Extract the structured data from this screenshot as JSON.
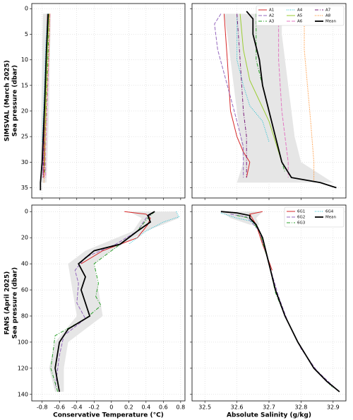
{
  "chart_data": [
    {
      "type": "line",
      "ylabel": [
        "SIMSVAL (March 2025)",
        "Sea pressure (dbar)"
      ],
      "xlim": [
        -0.92,
        0.85
      ],
      "xticks": [
        -0.8,
        -0.6,
        -0.4,
        -0.2,
        0.0,
        0.2,
        0.4,
        0.6,
        0.8
      ],
      "show_xtick_labels": false,
      "ylim": [
        37,
        -1
      ],
      "yticks": [
        0,
        5,
        10,
        15,
        20,
        25,
        30,
        35
      ],
      "show_ytick_labels": true,
      "grid": true,
      "band": {
        "color": "#e6e6e6",
        "y": [
          1,
          10,
          20,
          30,
          34
        ],
        "lower": [
          -0.79,
          -0.8,
          -0.81,
          -0.82,
          -0.82
        ],
        "upper": [
          -0.7,
          -0.71,
          -0.72,
          -0.74,
          -0.75
        ]
      },
      "series": [
        {
          "color": "#d62728",
          "style": "solid",
          "x": [
            -0.74,
            -0.75,
            -0.77,
            -0.78,
            -0.78
          ],
          "values": [
            1,
            8,
            18,
            28,
            33
          ]
        },
        {
          "color": "#9467bd",
          "style": "dashed",
          "x": [
            -0.73,
            -0.75,
            -0.77,
            -0.79,
            -0.79
          ],
          "values": [
            1,
            8,
            18,
            28,
            33
          ]
        },
        {
          "color": "#2ca02c",
          "style": "dashdot",
          "x": [
            -0.72,
            -0.73,
            -0.75,
            -0.77,
            -0.77
          ],
          "values": [
            1,
            8,
            18,
            28,
            32
          ]
        },
        {
          "color": "#17becf",
          "style": "dotted",
          "x": [
            -0.74,
            -0.76,
            -0.78,
            -0.8
          ],
          "values": [
            1,
            8,
            18,
            26
          ]
        },
        {
          "color": "#9acd32",
          "style": "solid",
          "x": [
            -0.72,
            -0.74,
            -0.76,
            -0.77
          ],
          "values": [
            1,
            8,
            18,
            30
          ]
        },
        {
          "color": "#e377c2",
          "style": "dashed",
          "x": [
            -0.71,
            -0.72,
            -0.74,
            -0.76,
            -0.76
          ],
          "values": [
            1,
            8,
            18,
            28,
            33
          ]
        },
        {
          "color": "#7b1f7b",
          "style": "dashdot",
          "x": [
            -0.73,
            -0.75,
            -0.77,
            -0.78,
            -0.79
          ],
          "values": [
            1,
            8,
            18,
            28,
            33
          ]
        },
        {
          "color": "#ff7f0e",
          "style": "dotted",
          "x": [
            -0.71,
            -0.72,
            -0.75,
            -0.77,
            -0.78
          ],
          "values": [
            1,
            8,
            18,
            28,
            34
          ]
        },
        {
          "color": "#000000",
          "style": "mean",
          "x": [
            -0.73,
            -0.75,
            -0.77,
            -0.79,
            -0.8,
            -0.82,
            -0.82
          ],
          "values": [
            1,
            8,
            18,
            26,
            30,
            34,
            35.5
          ]
        }
      ]
    },
    {
      "type": "line",
      "xlim": [
        32.46,
        32.94
      ],
      "xticks": [
        32.5,
        32.6,
        32.7,
        32.8,
        32.9
      ],
      "show_xtick_labels": false,
      "ylim": [
        37,
        -1
      ],
      "yticks": [
        0,
        5,
        10,
        15,
        20,
        25,
        30,
        35
      ],
      "show_ytick_labels": false,
      "grid": true,
      "legend": "upper right",
      "legend_columns": 3,
      "band": {
        "color": "#e6e6e6",
        "y": [
          1,
          5,
          10,
          15,
          20,
          25,
          30,
          34
        ],
        "lower": [
          32.56,
          32.57,
          32.58,
          32.59,
          32.6,
          32.61,
          32.62,
          32.6
        ],
        "upper": [
          32.74,
          32.74,
          32.75,
          32.76,
          32.77,
          32.78,
          32.8,
          32.9
        ]
      },
      "series": [
        {
          "name": "A1",
          "color": "#d62728",
          "style": "solid",
          "x": [
            32.56,
            32.57,
            32.58,
            32.6,
            32.62,
            32.64,
            32.63
          ],
          "values": [
            1,
            10,
            20,
            25,
            28,
            30,
            33
          ]
        },
        {
          "name": "A2",
          "color": "#9467bd",
          "style": "dashed",
          "x": [
            32.55,
            32.53,
            32.54,
            32.57,
            32.6,
            32.62,
            32.62
          ],
          "values": [
            1,
            3,
            8,
            15,
            22,
            27,
            33
          ]
        },
        {
          "name": "A3",
          "color": "#2ca02c",
          "style": "dashdot",
          "x": [
            32.66,
            32.66,
            32.68,
            32.7,
            32.72,
            32.74,
            32.75
          ],
          "values": [
            1,
            10,
            15,
            20,
            25,
            30,
            32
          ]
        },
        {
          "name": "A4",
          "color": "#17becf",
          "style": "dotted",
          "x": [
            32.6,
            32.6,
            32.62,
            32.64,
            32.68,
            32.7
          ],
          "values": [
            1,
            10,
            15,
            19,
            22,
            26
          ]
        },
        {
          "name": "A5",
          "color": "#9acd32",
          "style": "solid",
          "x": [
            32.61,
            32.62,
            32.64,
            32.67,
            32.7,
            32.72,
            32.74
          ],
          "values": [
            1,
            8,
            14,
            18,
            22,
            26,
            30
          ]
        },
        {
          "name": "A6",
          "color": "#e377c2",
          "style": "dashed",
          "x": [
            32.73,
            32.73,
            32.74,
            32.75,
            32.76,
            32.76
          ],
          "values": [
            1,
            10,
            20,
            25,
            30,
            33
          ]
        },
        {
          "name": "A7",
          "color": "#7b1f7b",
          "style": "dashdot",
          "x": [
            32.6,
            32.61,
            32.62,
            32.63,
            32.63
          ],
          "values": [
            1,
            10,
            20,
            25,
            33
          ]
        },
        {
          "name": "A8",
          "color": "#ff7f0e",
          "style": "dotted",
          "x": [
            32.81,
            32.81,
            32.82,
            32.83,
            32.84,
            32.84
          ],
          "values": [
            1,
            8,
            15,
            22,
            30,
            34
          ]
        },
        {
          "name": "Mean",
          "color": "#000000",
          "style": "mean",
          "x": [
            32.63,
            32.65,
            32.65,
            32.67,
            32.68,
            32.7,
            32.72,
            32.74,
            32.77,
            32.86,
            32.91
          ],
          "values": [
            0.5,
            2,
            5,
            10,
            15,
            20,
            25,
            30,
            33,
            34,
            35
          ]
        }
      ]
    },
    {
      "type": "line",
      "ylabel": [
        "FANS (April 2025)",
        "Sea pressure (dbar)"
      ],
      "xlabel": "Conservative Temperature (°C)",
      "xlim": [
        -0.92,
        0.85
      ],
      "xticks": [
        -0.8,
        -0.6,
        -0.4,
        -0.2,
        0.0,
        0.2,
        0.4,
        0.6,
        0.8
      ],
      "show_xtick_labels": true,
      "ylim": [
        145,
        -5
      ],
      "yticks": [
        0,
        20,
        40,
        60,
        80,
        100,
        120,
        140
      ],
      "show_ytick_labels": true,
      "grid": true,
      "band": {
        "color": "#e6e6e6",
        "y": [
          0,
          5,
          15,
          30,
          40,
          60,
          80,
          100,
          120,
          138
        ],
        "lower": [
          0.2,
          0.35,
          0.25,
          -0.3,
          -0.5,
          -0.45,
          -0.4,
          -0.65,
          -0.72,
          -0.65
        ],
        "upper": [
          0.75,
          0.78,
          0.4,
          0.0,
          -0.2,
          -0.15,
          -0.1,
          -0.5,
          -0.55,
          -0.55
        ]
      },
      "series": [
        {
          "name": "6G1",
          "color": "#d62728",
          "style": "solid",
          "x": [
            0.15,
            0.4,
            0.45,
            0.42,
            0.3,
            -0.1,
            -0.35
          ],
          "values": [
            0,
            2,
            5,
            10,
            20,
            30,
            40
          ]
        },
        {
          "name": "6G2",
          "color": "#9467bd",
          "style": "dashed",
          "x": [
            0.5,
            0.4,
            0.3,
            0.05,
            -0.3,
            -0.42,
            -0.38,
            -0.4,
            -0.3,
            -0.55,
            -0.6,
            -0.65
          ],
          "values": [
            0,
            5,
            15,
            25,
            35,
            45,
            55,
            70,
            82,
            95,
            110,
            135
          ]
        },
        {
          "name": "6G3",
          "color": "#2ca02c",
          "style": "dashdot",
          "x": [
            0.5,
            0.42,
            0.3,
            0.1,
            -0.2,
            -0.15,
            -0.18,
            -0.12,
            -0.3,
            -0.65,
            -0.7,
            -0.62
          ],
          "values": [
            0,
            5,
            15,
            25,
            40,
            55,
            65,
            72,
            82,
            95,
            120,
            138
          ]
        },
        {
          "name": "6G4",
          "color": "#17becf",
          "style": "dotted",
          "x": [
            0.75,
            0.78,
            0.6,
            0.4,
            0.2
          ],
          "values": [
            0,
            4,
            8,
            15,
            25
          ]
        },
        {
          "name": "Mean",
          "color": "#000000",
          "style": "mean",
          "x": [
            0.5,
            0.42,
            0.45,
            0.3,
            0.1,
            -0.2,
            -0.38,
            -0.3,
            -0.35,
            -0.3,
            -0.25,
            -0.5,
            -0.6,
            -0.65,
            -0.6
          ],
          "values": [
            0,
            3,
            8,
            15,
            25,
            30,
            40,
            50,
            60,
            70,
            80,
            90,
            100,
            120,
            138
          ]
        }
      ]
    },
    {
      "type": "line",
      "xlabel": "Absolute Salinity (g/kg)",
      "xlim": [
        32.46,
        32.94
      ],
      "xticks": [
        32.5,
        32.6,
        32.7,
        32.8,
        32.9
      ],
      "show_xtick_labels": true,
      "ylim": [
        145,
        -5
      ],
      "yticks": [
        0,
        20,
        40,
        60,
        80,
        100,
        120,
        140
      ],
      "show_ytick_labels": false,
      "grid": true,
      "legend": "upper right",
      "legend_columns": 2,
      "band": {
        "color": "#e6e6e6",
        "y": [
          0,
          5,
          10
        ],
        "lower": [
          32.55,
          32.58,
          32.64
        ],
        "upper": [
          32.68,
          32.66,
          32.67
        ]
      },
      "series": [
        {
          "name": "6G1",
          "color": "#d62728",
          "style": "solid",
          "x": [
            32.68,
            32.64,
            32.66,
            32.68,
            32.71
          ],
          "values": [
            0,
            2,
            10,
            25,
            45
          ]
        },
        {
          "name": "6G2",
          "color": "#9467bd",
          "style": "dashed",
          "x": [
            32.58,
            32.63,
            32.67,
            32.7,
            32.73,
            32.76,
            32.8,
            32.85,
            32.91
          ],
          "values": [
            2,
            4,
            15,
            40,
            65,
            85,
            105,
            122,
            136
          ]
        },
        {
          "name": "6G3",
          "color": "#2ca02c",
          "style": "dashdot",
          "x": [
            32.6,
            32.64,
            32.67,
            32.7,
            32.72,
            32.75,
            32.79,
            32.84,
            32.9
          ],
          "values": [
            3,
            5,
            15,
            40,
            62,
            80,
            100,
            120,
            135
          ]
        },
        {
          "name": "6G4",
          "color": "#17becf",
          "style": "dotted",
          "x": [
            32.55,
            32.6,
            32.64,
            32.66
          ],
          "values": [
            1,
            5,
            7,
            10
          ]
        },
        {
          "name": "Mean",
          "color": "#000000",
          "style": "mean",
          "x": [
            32.55,
            32.6,
            32.64,
            32.64,
            32.66,
            32.68,
            32.7,
            32.72,
            32.75,
            32.79,
            32.84,
            32.88,
            32.92
          ],
          "values": [
            0,
            1,
            3,
            5,
            10,
            20,
            40,
            60,
            80,
            100,
            120,
            130,
            138
          ]
        }
      ]
    }
  ]
}
